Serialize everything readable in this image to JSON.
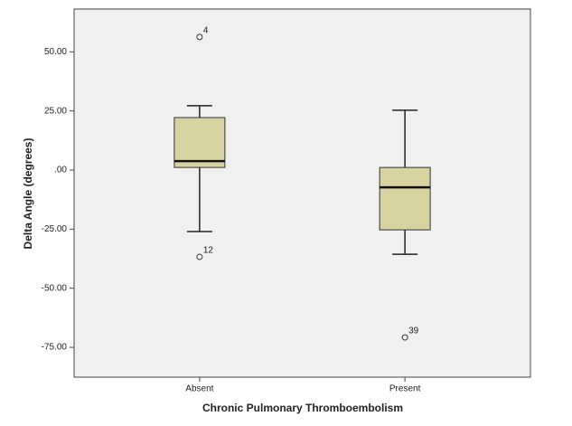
{
  "chart_data": {
    "type": "box",
    "x_label": "Chronic Pulmonary Thromboembolism",
    "y_label": "Delta Angle (degrees)",
    "categories": [
      "Absent",
      "Present"
    ],
    "color": "#d6d3a0",
    "plot_background": "#f0f0f0",
    "ylim": [
      -87.6,
      68.1
    ],
    "yticks": [
      {
        "value": 50,
        "label": "50.00"
      },
      {
        "value": 25,
        "label": "25.00"
      },
      {
        "value": 0,
        "label": ".00"
      },
      {
        "value": -25,
        "label": "-25.00"
      },
      {
        "value": -50,
        "label": "-50.00"
      },
      {
        "value": -75,
        "label": "-75.00"
      }
    ],
    "boxes": [
      {
        "whisker_low": -26.0,
        "q1": 1.1,
        "median": 3.8,
        "q3": 22.2,
        "whisker_high": 27.2,
        "outliers": [
          {
            "value": 56.3,
            "label": "4"
          },
          {
            "value": -36.7,
            "label": "12"
          }
        ]
      },
      {
        "whisker_low": -35.6,
        "q1": -25.3,
        "median": -7.3,
        "q3": 1.1,
        "whisker_high": 25.3,
        "outliers": [
          {
            "value": -70.8,
            "label": "39"
          }
        ]
      }
    ]
  }
}
